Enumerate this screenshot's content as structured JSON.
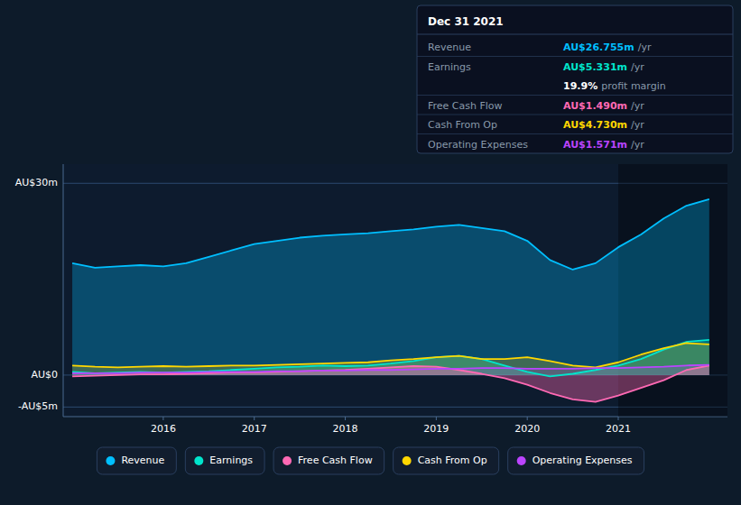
{
  "chart_data": {
    "type": "area",
    "x": [
      2015.0,
      2015.25,
      2015.5,
      2015.75,
      2016.0,
      2016.25,
      2016.5,
      2016.75,
      2017.0,
      2017.25,
      2017.5,
      2017.75,
      2018.0,
      2018.25,
      2018.5,
      2018.75,
      2019.0,
      2019.25,
      2019.5,
      2019.75,
      2020.0,
      2020.25,
      2020.5,
      2020.75,
      2021.0,
      2021.25,
      2021.5,
      2021.75,
      2022.0
    ],
    "series": [
      {
        "name": "Revenue",
        "color": "#00bfff",
        "values": [
          17.5,
          16.8,
          17.0,
          17.2,
          17.0,
          17.5,
          18.5,
          19.5,
          20.5,
          21.0,
          21.5,
          21.8,
          22.0,
          22.2,
          22.5,
          22.8,
          23.2,
          23.5,
          23.0,
          22.5,
          21.0,
          18.0,
          16.5,
          17.5,
          20.0,
          22.0,
          24.5,
          26.5,
          27.5
        ]
      },
      {
        "name": "Earnings",
        "color": "#00e5cc",
        "values": [
          0.5,
          0.3,
          0.4,
          0.5,
          0.4,
          0.5,
          0.6,
          0.8,
          1.0,
          1.2,
          1.3,
          1.5,
          1.4,
          1.5,
          1.8,
          2.2,
          2.8,
          3.0,
          2.5,
          1.5,
          0.5,
          -0.2,
          0.2,
          0.8,
          1.5,
          2.5,
          4.0,
          5.2,
          5.5
        ]
      },
      {
        "name": "Free Cash Flow",
        "color": "#ff69b4",
        "values": [
          -0.2,
          -0.1,
          0.0,
          0.1,
          0.1,
          0.2,
          0.3,
          0.4,
          0.4,
          0.5,
          0.6,
          0.7,
          0.8,
          1.0,
          1.2,
          1.4,
          1.3,
          0.8,
          0.2,
          -0.5,
          -1.5,
          -2.8,
          -3.8,
          -4.2,
          -3.2,
          -2.0,
          -0.8,
          0.8,
          1.5
        ]
      },
      {
        "name": "Cash From Op",
        "color": "#ffd700",
        "values": [
          1.5,
          1.3,
          1.2,
          1.3,
          1.4,
          1.3,
          1.4,
          1.5,
          1.5,
          1.6,
          1.7,
          1.8,
          1.9,
          2.0,
          2.3,
          2.5,
          2.8,
          3.0,
          2.5,
          2.5,
          2.8,
          2.2,
          1.5,
          1.2,
          2.0,
          3.2,
          4.2,
          5.0,
          4.8
        ]
      },
      {
        "name": "Operating Expenses",
        "color": "#bb44ff",
        "values": [
          0.3,
          0.3,
          0.3,
          0.4,
          0.4,
          0.4,
          0.5,
          0.5,
          0.5,
          0.6,
          0.6,
          0.7,
          0.7,
          0.8,
          0.8,
          0.9,
          1.0,
          1.0,
          1.1,
          1.1,
          1.0,
          1.0,
          1.0,
          1.1,
          1.1,
          1.2,
          1.3,
          1.5,
          1.6
        ]
      }
    ],
    "xlim": [
      2014.9,
      2022.2
    ],
    "xticks": [
      2016,
      2017,
      2018,
      2019,
      2020,
      2021
    ],
    "ylim": [
      -6.5,
      33
    ],
    "yticks": [
      {
        "value": -5,
        "label": "-AU$5m"
      },
      {
        "value": 0,
        "label": "AU$0"
      },
      {
        "value": 30,
        "label": "AU$30m"
      }
    ],
    "highlight": {
      "x": [
        2021.0,
        2022.2
      ]
    },
    "grid": true,
    "legend": "bottom",
    "annotations": [
      {
        "text": "Dec 31 2021"
      },
      {
        "label": "Revenue",
        "text": "AU$26.755m",
        "unit": "/yr",
        "color": "#00bfff"
      },
      {
        "label": "Earnings",
        "text": "AU$5.331m",
        "unit": "/yr",
        "color": "#00e5cc"
      },
      {
        "text": "19.9%",
        "unit": "profit margin",
        "color": "#ffffff"
      },
      {
        "label": "Free Cash Flow",
        "text": "AU$1.490m",
        "unit": "/yr",
        "color": "#ff69b4"
      },
      {
        "label": "Cash From Op",
        "text": "AU$4.730m",
        "unit": "/yr",
        "color": "#ffd700"
      },
      {
        "label": "Operating Expenses",
        "text": "AU$1.571m",
        "unit": "/yr",
        "color": "#bb44ff"
      }
    ]
  }
}
